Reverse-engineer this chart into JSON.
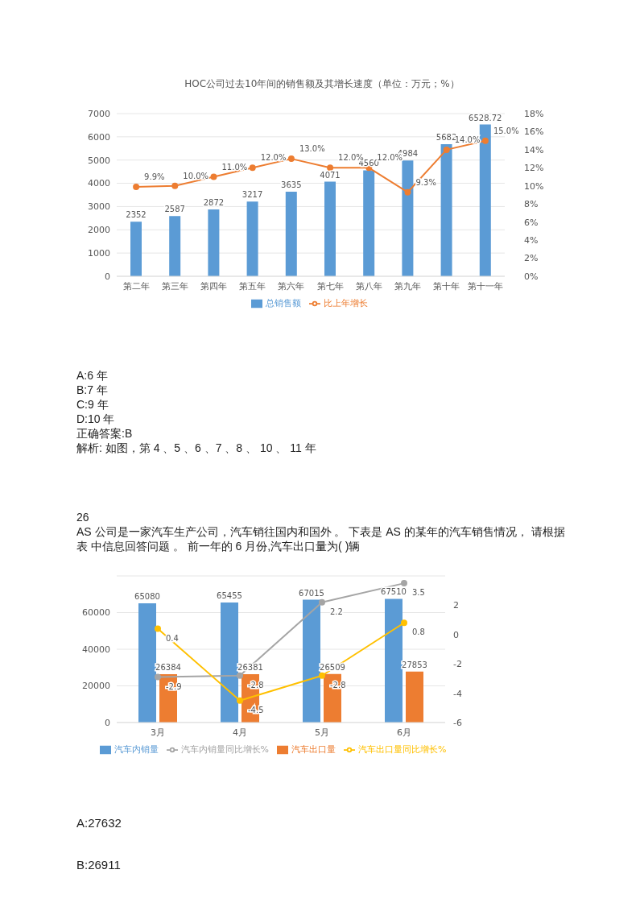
{
  "chart_data": [
    {
      "type": "bar",
      "title": "HOC公司过去10年间的销售额及其增长速度（单位：万元；%）",
      "categories": [
        "第二年",
        "第三年",
        "第四年",
        "第五年",
        "第六年",
        "第七年",
        "第八年",
        "第九年",
        "第十年",
        "第十一年"
      ],
      "series": [
        {
          "name": "总销售额",
          "color": "#5b9bd5",
          "values": [
            2352,
            2587,
            2872,
            3217,
            3635,
            4071,
            4560,
            4984,
            5682,
            6528.72
          ],
          "value_labels": [
            "2352",
            "2587",
            "2872",
            "3217",
            "3635",
            "4071",
            "4560",
            "4984",
            "5682",
            "6528.72"
          ]
        },
        {
          "name": "比上年增长",
          "type": "line",
          "axis": "y2",
          "color": "#ed7d31",
          "values": [
            9.9,
            10.0,
            11.0,
            12.0,
            13.0,
            12.0,
            12.0,
            9.3,
            14.0,
            15.0
          ],
          "value_labels": [
            "9.9%",
            "10.0%",
            "11.0%",
            "12.0%",
            "13.0%",
            "12.0%",
            "12.0%",
            "9.3%",
            "14.0%",
            "15.0%"
          ]
        }
      ],
      "ylim": [
        0,
        7000
      ],
      "yticks": [
        0,
        1000,
        2000,
        3000,
        4000,
        5000,
        6000,
        7000
      ],
      "y2lim": [
        0,
        18
      ],
      "y2ticks": [
        {
          "value": 0,
          "label": "0%"
        },
        {
          "value": 2,
          "label": "2%"
        },
        {
          "value": 4,
          "label": "4%"
        },
        {
          "value": 6,
          "label": "6%"
        },
        {
          "value": 8,
          "label": "8%"
        },
        {
          "value": 10,
          "label": "10%"
        },
        {
          "value": 12,
          "label": "12%"
        },
        {
          "value": 14,
          "label": "14%"
        },
        {
          "value": 16,
          "label": "16%"
        },
        {
          "value": 18,
          "label": "18%"
        }
      ],
      "grid": "y",
      "legend": "bottom",
      "marker": "circle",
      "annotations": [
        "A:6 年",
        "B:7 年",
        "C:9 年",
        "D:10 年",
        "正确答案:B",
        "解析: 如图，第 4 、5 、6 、7 、8 、 10 、 11 年",
        "26",
        "AS 公司是一家汽车生产公司，汽车销往国内和国外 。 下表是 AS 的某年的汽车销售情况， 请根据表 中信息回答问题 。 前一年的 6 月份,汽车出口量为( )辆"
      ]
    },
    {
      "type": "bar",
      "categories": [
        "3月",
        "4月",
        "5月",
        "6月"
      ],
      "series": [
        {
          "name": "汽车内销量",
          "color": "#5b9bd5",
          "values": [
            65080,
            65455,
            67015,
            67510
          ],
          "value_labels": [
            "65080",
            "65455",
            "67015",
            "67510"
          ]
        },
        {
          "name": "汽车出口量",
          "color": "#ed7d31",
          "values": [
            26384,
            26381,
            26509,
            27853
          ],
          "value_labels": [
            "26384",
            "26381",
            "26509",
            "27853"
          ]
        },
        {
          "name": "汽车内销量同比增长%",
          "type": "line",
          "axis": "y2",
          "color": "#a5a5a5",
          "values": [
            -2.9,
            -2.8,
            2.2,
            3.5
          ],
          "value_labels": [
            "-2.9",
            "-2.8",
            "2.2",
            "3.5"
          ]
        },
        {
          "name": "汽车出口量同比增长%",
          "type": "line",
          "axis": "y2",
          "color": "#ffc000",
          "values": [
            0.4,
            -4.5,
            -2.8,
            0.8
          ],
          "value_labels": [
            "0.4",
            "-4.5",
            "-2.8",
            "0.8"
          ]
        }
      ],
      "ylim": [
        0,
        80000
      ],
      "yticks": [
        0,
        20000,
        40000,
        60000
      ],
      "y2lim": [
        -6,
        4
      ],
      "y2ticks": [
        -6,
        -4,
        -2,
        0,
        2
      ],
      "grid": "y",
      "legend": "bottom",
      "marker": "circle",
      "annotations": [
        "A:27632",
        "B:26911"
      ]
    }
  ]
}
